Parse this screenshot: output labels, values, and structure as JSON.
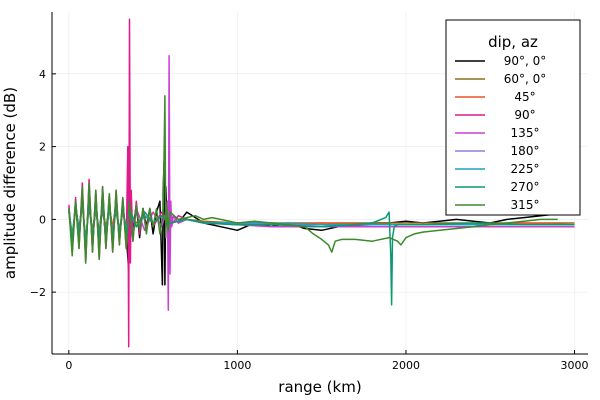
{
  "chart_data": {
    "type": "line",
    "xlabel": "range (km)",
    "ylabel": "amplitude difference (dB)",
    "xlim": [
      -100,
      3080
    ],
    "ylim": [
      -3.7,
      5.7
    ],
    "xticks": [
      0,
      1000,
      2000,
      3000
    ],
    "xtick_labels": [
      "0",
      "1000",
      "2000",
      "3000"
    ],
    "yticks": [
      -2,
      0,
      2,
      4
    ],
    "ytick_labels": [
      "−2",
      "0",
      "2",
      "4"
    ],
    "grid": true,
    "legend": {
      "title": "dip, az",
      "placement": "top-right",
      "entries": [
        "90°, 0°",
        "60°, 0°",
        "45°",
        "90°",
        "135°",
        "180°",
        "225°",
        "270°",
        "315°"
      ]
    },
    "series": [
      {
        "name": "90°, 0°",
        "color": "#000000",
        "x": [
          0,
          20,
          40,
          60,
          80,
          100,
          120,
          140,
          160,
          180,
          200,
          220,
          240,
          260,
          280,
          300,
          320,
          340,
          355,
          360,
          380,
          400,
          420,
          440,
          460,
          480,
          500,
          520,
          540,
          555,
          560,
          565,
          570,
          575,
          580,
          585,
          590,
          600,
          620,
          650,
          700,
          800,
          900,
          1000,
          1100,
          1200,
          1300,
          1400,
          1500,
          1600,
          1700,
          1800,
          1900,
          2000,
          2100,
          2200,
          2300,
          2400,
          2500,
          2600,
          2700,
          2800,
          2900,
          3000
        ],
        "y": [
          0.3,
          -0.6,
          0.4,
          -0.3,
          0.5,
          -0.7,
          0.6,
          -0.5,
          0.3,
          -0.4,
          0.5,
          -0.6,
          0.4,
          -0.3,
          0.5,
          -0.5,
          0.3,
          -0.4,
          -1.4,
          0.6,
          -0.3,
          0.4,
          -0.5,
          0.3,
          -0.2,
          0.3,
          -0.4,
          0.2,
          0.5,
          -1.8,
          0.8,
          1.6,
          -1.8,
          0.9,
          0.3,
          -0.2,
          0.2,
          -0.2,
          0.1,
          -0.1,
          0.2,
          -0.1,
          -0.2,
          -0.3,
          -0.1,
          -0.2,
          -0.1,
          -0.25,
          -0.3,
          -0.2,
          -0.15,
          -0.1,
          -0.1,
          -0.05,
          -0.1,
          -0.05,
          0.0,
          -0.05,
          -0.1,
          0.0,
          0.05,
          0.1,
          0.15,
          0.25
        ]
      },
      {
        "name": "60°, 0°",
        "color": "#8e6d1f",
        "x": [
          0,
          20,
          40,
          60,
          80,
          100,
          120,
          140,
          160,
          180,
          200,
          220,
          240,
          260,
          280,
          300,
          320,
          340,
          360,
          400,
          450,
          500,
          550,
          600,
          700,
          800,
          1000,
          1200,
          1500,
          1800,
          2100,
          2400,
          2700,
          3000
        ],
        "y": [
          0.2,
          -0.4,
          0.3,
          -0.3,
          0.4,
          -0.5,
          0.3,
          -0.3,
          0.3,
          -0.3,
          0.2,
          -0.2,
          0.3,
          -0.2,
          0.2,
          -0.3,
          0.2,
          -0.2,
          0.2,
          -0.1,
          0.1,
          -0.1,
          0.1,
          -0.1,
          0.0,
          -0.05,
          -0.1,
          -0.1,
          -0.1,
          -0.1,
          -0.1,
          -0.1,
          -0.1,
          -0.1
        ]
      },
      {
        "name": "45°",
        "color": "#e8532f",
        "x": [
          0,
          20,
          40,
          60,
          80,
          100,
          120,
          140,
          160,
          180,
          200,
          220,
          240,
          260,
          280,
          300,
          320,
          340,
          360,
          400,
          450,
          500,
          550,
          600,
          700,
          800,
          1000,
          1200,
          1500,
          1800,
          2100,
          2400,
          2700,
          3000
        ],
        "y": [
          0.3,
          -0.5,
          0.3,
          -0.4,
          0.4,
          -0.6,
          0.5,
          -0.4,
          0.3,
          -0.5,
          0.4,
          -0.3,
          0.3,
          -0.2,
          0.3,
          -0.3,
          0.2,
          -0.2,
          0.3,
          -0.2,
          0.1,
          -0.1,
          0.1,
          -0.1,
          0.0,
          -0.1,
          -0.1,
          -0.15,
          -0.1,
          -0.15,
          -0.15,
          -0.15,
          -0.1,
          -0.15
        ]
      },
      {
        "name": "90°",
        "color": "#e01a8e",
        "x": [
          0,
          20,
          40,
          60,
          80,
          100,
          120,
          140,
          160,
          180,
          200,
          220,
          240,
          260,
          280,
          300,
          320,
          340,
          350,
          355,
          360,
          365,
          370,
          380,
          400,
          420,
          440,
          460,
          480,
          500,
          550,
          600,
          650,
          700,
          800,
          1000,
          1200,
          1500,
          1800,
          2100,
          2400,
          2700,
          3000
        ],
        "y": [
          0.4,
          -0.9,
          0.6,
          -0.8,
          1.0,
          -1.2,
          1.1,
          -0.9,
          0.8,
          -1.1,
          0.9,
          -0.8,
          0.7,
          -0.9,
          0.8,
          -0.7,
          0.6,
          -0.8,
          2.0,
          -3.5,
          5.5,
          -1.2,
          0.8,
          -0.6,
          0.5,
          -0.4,
          0.3,
          -0.3,
          0.3,
          -0.2,
          0.2,
          -0.2,
          0.1,
          0.0,
          -0.1,
          -0.1,
          -0.15,
          -0.15,
          -0.2,
          -0.2,
          -0.2,
          -0.2,
          -0.2
        ]
      },
      {
        "name": "135°",
        "color": "#c940d4",
        "x": [
          0,
          20,
          40,
          60,
          80,
          100,
          120,
          140,
          160,
          180,
          200,
          220,
          240,
          260,
          280,
          300,
          320,
          340,
          360,
          380,
          400,
          450,
          500,
          550,
          570,
          585,
          590,
          595,
          600,
          605,
          610,
          620,
          650,
          700,
          800,
          1000,
          1200,
          1500,
          1800,
          2100,
          2400,
          2700,
          3000
        ],
        "y": [
          0.3,
          -0.8,
          0.5,
          -0.7,
          0.8,
          -1.0,
          0.9,
          -0.8,
          0.7,
          -0.9,
          0.8,
          -0.7,
          0.6,
          -0.8,
          0.7,
          -0.6,
          0.5,
          -0.6,
          0.4,
          -0.5,
          0.3,
          -0.3,
          0.2,
          -0.2,
          0.1,
          0.5,
          -2.5,
          4.5,
          -1.5,
          0.5,
          -0.2,
          0.1,
          -0.1,
          0.0,
          -0.1,
          -0.15,
          -0.2,
          -0.2,
          -0.2,
          -0.2,
          -0.2,
          -0.2,
          -0.2
        ]
      },
      {
        "name": "180°",
        "color": "#8f7fe0",
        "x": [
          0,
          20,
          40,
          60,
          80,
          100,
          120,
          140,
          160,
          180,
          200,
          220,
          240,
          260,
          280,
          300,
          320,
          340,
          360,
          400,
          450,
          500,
          550,
          600,
          700,
          800,
          1000,
          1200,
          1500,
          1800,
          2100,
          2400,
          2700,
          3000
        ],
        "y": [
          0.3,
          -0.6,
          0.4,
          -0.5,
          0.6,
          -0.8,
          0.6,
          -0.6,
          0.5,
          -0.6,
          0.5,
          -0.4,
          0.4,
          -0.5,
          0.4,
          -0.4,
          0.3,
          -0.4,
          0.3,
          -0.2,
          0.2,
          -0.1,
          0.1,
          -0.1,
          0.0,
          -0.1,
          -0.1,
          -0.15,
          -0.15,
          -0.15,
          -0.15,
          -0.15,
          -0.15,
          -0.15
        ]
      },
      {
        "name": "225°",
        "color": "#1f9fbf",
        "x": [
          0,
          20,
          40,
          60,
          80,
          100,
          120,
          140,
          160,
          180,
          200,
          220,
          240,
          260,
          280,
          300,
          320,
          340,
          360,
          400,
          450,
          500,
          550,
          600,
          700,
          800,
          1000,
          1200,
          1500,
          1800,
          2100,
          2400,
          2700,
          3000
        ],
        "y": [
          0.2,
          -0.5,
          0.4,
          -0.4,
          0.5,
          -0.6,
          0.5,
          -0.5,
          0.4,
          -0.5,
          0.4,
          -0.4,
          0.3,
          -0.4,
          0.3,
          -0.3,
          0.3,
          -0.3,
          0.2,
          -0.2,
          0.1,
          -0.1,
          0.1,
          -0.1,
          0.0,
          -0.1,
          -0.1,
          -0.1,
          -0.15,
          -0.15,
          -0.15,
          -0.15,
          -0.15,
          -0.15
        ]
      },
      {
        "name": "270°",
        "color": "#0d9970",
        "x": [
          0,
          20,
          40,
          60,
          80,
          100,
          120,
          140,
          160,
          180,
          200,
          220,
          240,
          260,
          280,
          300,
          320,
          340,
          360,
          400,
          450,
          500,
          550,
          600,
          700,
          800,
          1000,
          1200,
          1500,
          1700,
          1800,
          1880,
          1900,
          1910,
          1915,
          1920,
          1930,
          1950,
          2000,
          2100,
          2400,
          2700,
          3000
        ],
        "y": [
          0.3,
          -0.7,
          0.5,
          -0.6,
          0.7,
          -0.9,
          0.7,
          -0.7,
          0.6,
          -0.7,
          0.6,
          -0.5,
          0.5,
          -0.6,
          0.5,
          -0.5,
          0.4,
          -0.5,
          0.3,
          -0.2,
          0.2,
          -0.1,
          0.1,
          -0.1,
          0.0,
          -0.1,
          -0.15,
          -0.15,
          -0.2,
          -0.15,
          -0.1,
          0.05,
          0.2,
          -1.0,
          -2.35,
          -0.5,
          -0.2,
          -0.15,
          -0.15,
          -0.15,
          -0.1,
          -0.15,
          -0.15
        ]
      },
      {
        "name": "315°",
        "color": "#3d8a2b",
        "x": [
          0,
          20,
          40,
          60,
          80,
          100,
          120,
          140,
          160,
          180,
          200,
          220,
          240,
          260,
          280,
          300,
          320,
          340,
          360,
          380,
          400,
          420,
          440,
          460,
          480,
          500,
          520,
          540,
          560,
          570,
          575,
          580,
          590,
          600,
          650,
          700,
          750,
          800,
          850,
          900,
          1000,
          1100,
          1200,
          1300,
          1400,
          1450,
          1500,
          1540,
          1560,
          1580,
          1620,
          1700,
          1800,
          1900,
          1950,
          1970,
          2000,
          2050,
          2100,
          2200,
          2300,
          2400,
          2500,
          2600,
          2700,
          2800,
          2900
        ],
        "y": [
          0.3,
          -1.0,
          0.5,
          -0.8,
          0.9,
          -1.2,
          1.0,
          -0.9,
          0.8,
          -1.1,
          0.9,
          -0.8,
          0.7,
          -0.9,
          0.8,
          -0.7,
          0.6,
          -0.8,
          0.5,
          -0.6,
          0.4,
          -0.3,
          0.3,
          -0.4,
          0.3,
          -0.2,
          0.3,
          -0.4,
          0.2,
          3.4,
          -0.5,
          0.4,
          -0.3,
          0.2,
          0.0,
          0.05,
          0.1,
          0.0,
          0.05,
          0.0,
          -0.1,
          -0.05,
          -0.1,
          -0.15,
          -0.2,
          -0.4,
          -0.55,
          -0.7,
          -0.9,
          -0.6,
          -0.55,
          -0.55,
          -0.6,
          -0.5,
          -0.6,
          -0.7,
          -0.5,
          -0.4,
          -0.35,
          -0.3,
          -0.25,
          -0.2,
          -0.15,
          -0.1,
          -0.05,
          0.0,
          0.0
        ]
      }
    ]
  }
}
